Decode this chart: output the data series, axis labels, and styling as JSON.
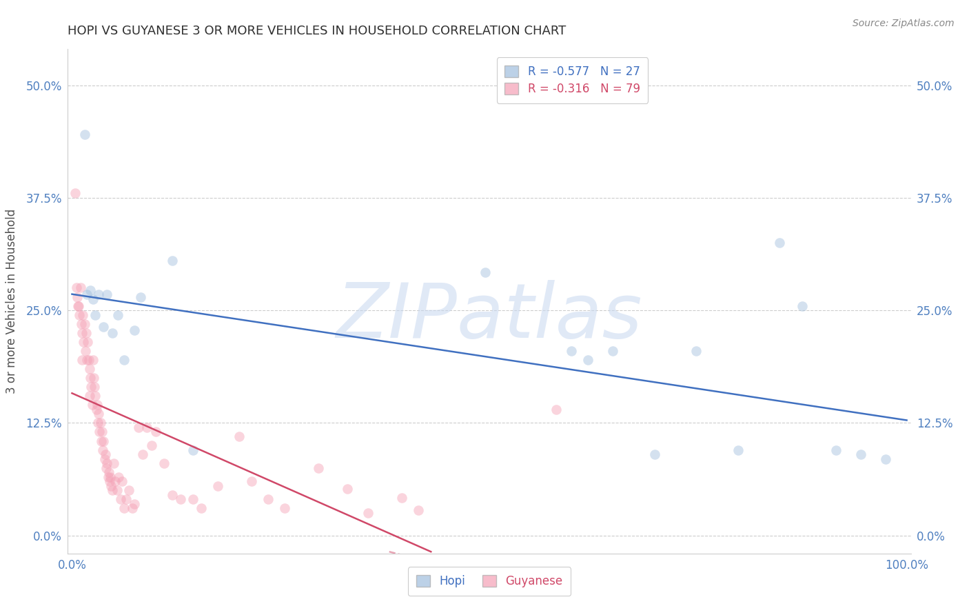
{
  "title": "HOPI VS GUYANESE 3 OR MORE VEHICLES IN HOUSEHOLD CORRELATION CHART",
  "source": "Source: ZipAtlas.com",
  "ylabel": "3 or more Vehicles in Household",
  "xlim": [
    -0.005,
    1.005
  ],
  "ylim": [
    -0.02,
    0.54
  ],
  "yticks": [
    0.0,
    0.125,
    0.25,
    0.375,
    0.5
  ],
  "ytick_labels": [
    "0.0%",
    "12.5%",
    "25.0%",
    "37.5%",
    "50.0%"
  ],
  "xtick_positions": [
    0.0,
    1.0
  ],
  "xtick_labels": [
    "0.0%",
    "100.0%"
  ],
  "hopi_color": "#a0bedd",
  "guyanese_color": "#f4a0b5",
  "hopi_line_color": "#4070c0",
  "guyanese_line_color": "#d04868",
  "watermark": "ZIPatlas",
  "watermark_color": "#c8d8f0",
  "background_color": "#ffffff",
  "grid_color": "#cccccc",
  "title_color": "#303030",
  "axis_label_color": "#505050",
  "tick_color": "#5080c0",
  "source_color": "#888888",
  "hopi_x": [
    0.015,
    0.018,
    0.022,
    0.025,
    0.028,
    0.032,
    0.038,
    0.042,
    0.048,
    0.055,
    0.062,
    0.075,
    0.082,
    0.12,
    0.145,
    0.495,
    0.598,
    0.618,
    0.648,
    0.698,
    0.748,
    0.798,
    0.848,
    0.875,
    0.915,
    0.945,
    0.975
  ],
  "hopi_y": [
    0.445,
    0.268,
    0.272,
    0.262,
    0.245,
    0.268,
    0.232,
    0.268,
    0.225,
    0.245,
    0.195,
    0.228,
    0.265,
    0.305,
    0.095,
    0.292,
    0.205,
    0.195,
    0.205,
    0.09,
    0.205,
    0.095,
    0.325,
    0.255,
    0.095,
    0.09,
    0.085
  ],
  "guyanese_x": [
    0.004,
    0.005,
    0.006,
    0.007,
    0.008,
    0.009,
    0.01,
    0.011,
    0.012,
    0.012,
    0.013,
    0.014,
    0.015,
    0.016,
    0.017,
    0.018,
    0.019,
    0.02,
    0.021,
    0.021,
    0.022,
    0.023,
    0.024,
    0.025,
    0.026,
    0.027,
    0.028,
    0.029,
    0.03,
    0.031,
    0.032,
    0.033,
    0.034,
    0.035,
    0.036,
    0.037,
    0.038,
    0.039,
    0.04,
    0.041,
    0.042,
    0.043,
    0.044,
    0.045,
    0.046,
    0.047,
    0.048,
    0.05,
    0.052,
    0.054,
    0.056,
    0.058,
    0.06,
    0.062,
    0.065,
    0.068,
    0.072,
    0.075,
    0.08,
    0.085,
    0.09,
    0.095,
    0.1,
    0.11,
    0.12,
    0.13,
    0.145,
    0.155,
    0.175,
    0.2,
    0.215,
    0.235,
    0.255,
    0.295,
    0.33,
    0.355,
    0.395,
    0.415,
    0.58
  ],
  "guyanese_y": [
    0.38,
    0.275,
    0.265,
    0.255,
    0.255,
    0.245,
    0.275,
    0.235,
    0.225,
    0.195,
    0.245,
    0.215,
    0.235,
    0.205,
    0.225,
    0.195,
    0.215,
    0.195,
    0.185,
    0.155,
    0.175,
    0.165,
    0.145,
    0.195,
    0.175,
    0.165,
    0.155,
    0.14,
    0.145,
    0.125,
    0.135,
    0.115,
    0.125,
    0.105,
    0.115,
    0.095,
    0.105,
    0.085,
    0.09,
    0.075,
    0.08,
    0.065,
    0.07,
    0.06,
    0.065,
    0.055,
    0.05,
    0.08,
    0.06,
    0.05,
    0.065,
    0.04,
    0.06,
    0.03,
    0.04,
    0.05,
    0.03,
    0.035,
    0.12,
    0.09,
    0.12,
    0.1,
    0.115,
    0.08,
    0.045,
    0.04,
    0.04,
    0.03,
    0.055,
    0.11,
    0.06,
    0.04,
    0.03,
    0.075,
    0.052,
    0.025,
    0.042,
    0.028,
    0.14
  ],
  "hopi_trend_x": [
    0.0,
    1.0
  ],
  "hopi_trend_y": [
    0.268,
    0.128
  ],
  "guyanese_trend_x": [
    0.0,
    0.43
  ],
  "guyanese_trend_y": [
    0.158,
    -0.018
  ],
  "marker_size": 110,
  "marker_alpha": 0.45,
  "line_width": 1.8
}
